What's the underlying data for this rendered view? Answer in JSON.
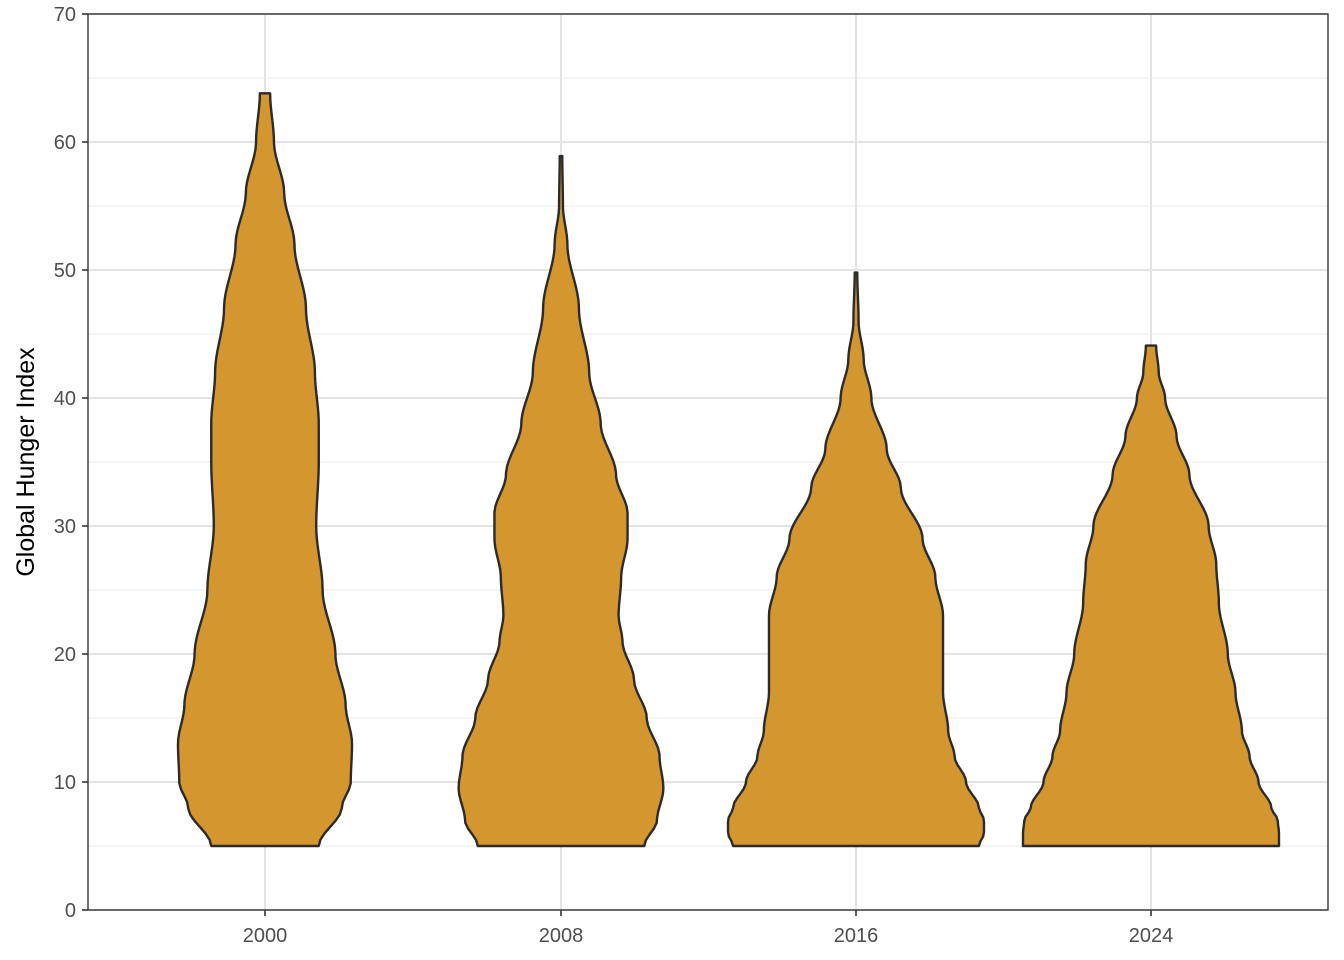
{
  "chart_data": {
    "type": "violin",
    "title": "",
    "xlabel": "",
    "ylabel": "Global Hunger Index",
    "categories": [
      "2000",
      "2008",
      "2016",
      "2024"
    ],
    "ylim": [
      0,
      70
    ],
    "yticks": [
      0,
      10,
      20,
      30,
      40,
      50,
      60,
      70
    ],
    "grid": true,
    "legend": "none",
    "fill_color": "#D4962F",
    "edge_color": "#2b2b2b",
    "violins": [
      {
        "category": "2000",
        "min": 5.0,
        "max": 63.8,
        "profile": [
          [
            5,
            0.42
          ],
          [
            8,
            0.6
          ],
          [
            10,
            0.67
          ],
          [
            13,
            0.68
          ],
          [
            16,
            0.63
          ],
          [
            20,
            0.55
          ],
          [
            25,
            0.45
          ],
          [
            30,
            0.4
          ],
          [
            35,
            0.42
          ],
          [
            38,
            0.42
          ],
          [
            42,
            0.39
          ],
          [
            47,
            0.32
          ],
          [
            52,
            0.23
          ],
          [
            56,
            0.15
          ],
          [
            60,
            0.07
          ],
          [
            63.8,
            0.04
          ]
        ]
      },
      {
        "category": "2008",
        "min": 5.0,
        "max": 58.9,
        "profile": [
          [
            5,
            0.65
          ],
          [
            7,
            0.75
          ],
          [
            9.5,
            0.8
          ],
          [
            12,
            0.77
          ],
          [
            15,
            0.67
          ],
          [
            18,
            0.57
          ],
          [
            21,
            0.48
          ],
          [
            23,
            0.45
          ],
          [
            26,
            0.47
          ],
          [
            29,
            0.52
          ],
          [
            31,
            0.52
          ],
          [
            34,
            0.43
          ],
          [
            38,
            0.31
          ],
          [
            42,
            0.22
          ],
          [
            47,
            0.14
          ],
          [
            52,
            0.05
          ],
          [
            55,
            0.015
          ],
          [
            58.9,
            0.01
          ]
        ]
      },
      {
        "category": "2016",
        "min": 5.0,
        "max": 49.8,
        "profile": [
          [
            5,
            0.96
          ],
          [
            6,
            1.0
          ],
          [
            7,
            1.0
          ],
          [
            8,
            0.96
          ],
          [
            10,
            0.86
          ],
          [
            12,
            0.77
          ],
          [
            14,
            0.72
          ],
          [
            17,
            0.68
          ],
          [
            20,
            0.68
          ],
          [
            23,
            0.68
          ],
          [
            26,
            0.62
          ],
          [
            29,
            0.52
          ],
          [
            33,
            0.35
          ],
          [
            36,
            0.24
          ],
          [
            40,
            0.12
          ],
          [
            43,
            0.06
          ],
          [
            46,
            0.02
          ],
          [
            49.8,
            0.01
          ]
        ]
      },
      {
        "category": "2024",
        "min": 5.0,
        "max": 44.1,
        "profile": [
          [
            5,
            1.0
          ],
          [
            6,
            1.0
          ],
          [
            7,
            0.99
          ],
          [
            8,
            0.94
          ],
          [
            10,
            0.84
          ],
          [
            12,
            0.77
          ],
          [
            14,
            0.71
          ],
          [
            17,
            0.66
          ],
          [
            20,
            0.6
          ],
          [
            24,
            0.53
          ],
          [
            27,
            0.51
          ],
          [
            30,
            0.45
          ],
          [
            34,
            0.3
          ],
          [
            37,
            0.2
          ],
          [
            40,
            0.11
          ],
          [
            42,
            0.06
          ],
          [
            44.1,
            0.04
          ]
        ]
      }
    ]
  }
}
